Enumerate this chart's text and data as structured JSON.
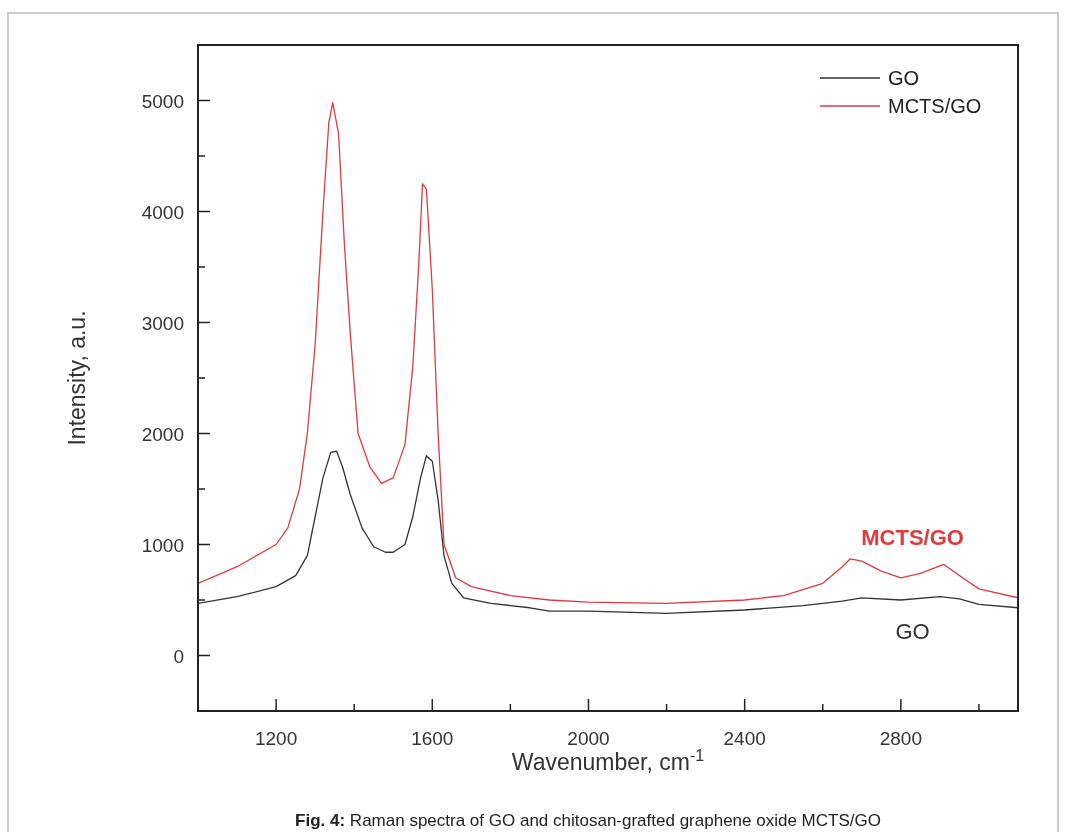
{
  "chart_data": {
    "type": "line",
    "xlabel": "Wavenumber, cm$^{-1}$",
    "ylabel": "Intensity, a.u.",
    "xlim": [
      1000,
      3100
    ],
    "ylim": [
      -500,
      5500
    ],
    "xticks": [
      1200,
      {
        "value": 1400,
        "label": null
      },
      1600,
      {
        "value": 1800,
        "label": null
      },
      2000,
      {
        "value": 2200,
        "label": null
      },
      2400,
      {
        "value": 2600,
        "label": null
      },
      2800,
      {
        "value": 3000,
        "label": null
      }
    ],
    "yticks": [
      {
        "value": -500,
        "label": null
      },
      0,
      {
        "value": 500,
        "label": null
      },
      1000,
      {
        "value": 1500,
        "label": null
      },
      2000,
      {
        "value": 2500,
        "label": null
      },
      3000,
      {
        "value": 3500,
        "label": null
      },
      4000,
      {
        "value": 4500,
        "label": null
      },
      5000
    ],
    "legend": "top right",
    "grid": false,
    "marker": "none",
    "line_style": "solid",
    "annotations": [
      "MCTS/GO",
      "GO",
      "Fig. 4: Raman spectra of GO and chitosan-grafted graphene oxide MCTS/GO"
    ],
    "series": [
      {
        "name": "GO",
        "color": "#333333",
        "x": [
          1000,
          1100,
          1200,
          1250,
          1280,
          1300,
          1320,
          1340,
          1355,
          1370,
          1390,
          1420,
          1450,
          1480,
          1500,
          1530,
          1550,
          1570,
          1585,
          1600,
          1615,
          1630,
          1650,
          1680,
          1750,
          1850,
          1900,
          2000,
          2200,
          2400,
          2550,
          2650,
          2700,
          2800,
          2900,
          2950,
          3000,
          3100
        ],
        "values": [
          470,
          530,
          620,
          720,
          900,
          1250,
          1600,
          1830,
          1840,
          1700,
          1450,
          1150,
          980,
          930,
          930,
          1000,
          1250,
          1600,
          1800,
          1750,
          1400,
          900,
          650,
          520,
          470,
          430,
          400,
          400,
          380,
          410,
          450,
          490,
          520,
          500,
          530,
          510,
          460,
          430
        ]
      },
      {
        "name": "MCTS/GO",
        "color": "#e0393e",
        "x": [
          1000,
          1100,
          1200,
          1230,
          1260,
          1280,
          1300,
          1320,
          1335,
          1345,
          1360,
          1375,
          1390,
          1410,
          1440,
          1470,
          1500,
          1530,
          1550,
          1565,
          1575,
          1585,
          1600,
          1615,
          1630,
          1660,
          1700,
          1800,
          1900,
          2000,
          2200,
          2400,
          2500,
          2600,
          2650,
          2670,
          2700,
          2750,
          2800,
          2850,
          2910,
          2950,
          3000,
          3100
        ],
        "values": [
          650,
          800,
          1000,
          1150,
          1500,
          2000,
          2800,
          4000,
          4800,
          4980,
          4700,
          3700,
          2900,
          2000,
          1700,
          1550,
          1600,
          1900,
          2600,
          3500,
          4250,
          4200,
          3300,
          2000,
          1000,
          700,
          620,
          540,
          500,
          480,
          470,
          500,
          540,
          650,
          800,
          870,
          850,
          760,
          700,
          740,
          820,
          720,
          600,
          520
        ]
      }
    ]
  }
}
